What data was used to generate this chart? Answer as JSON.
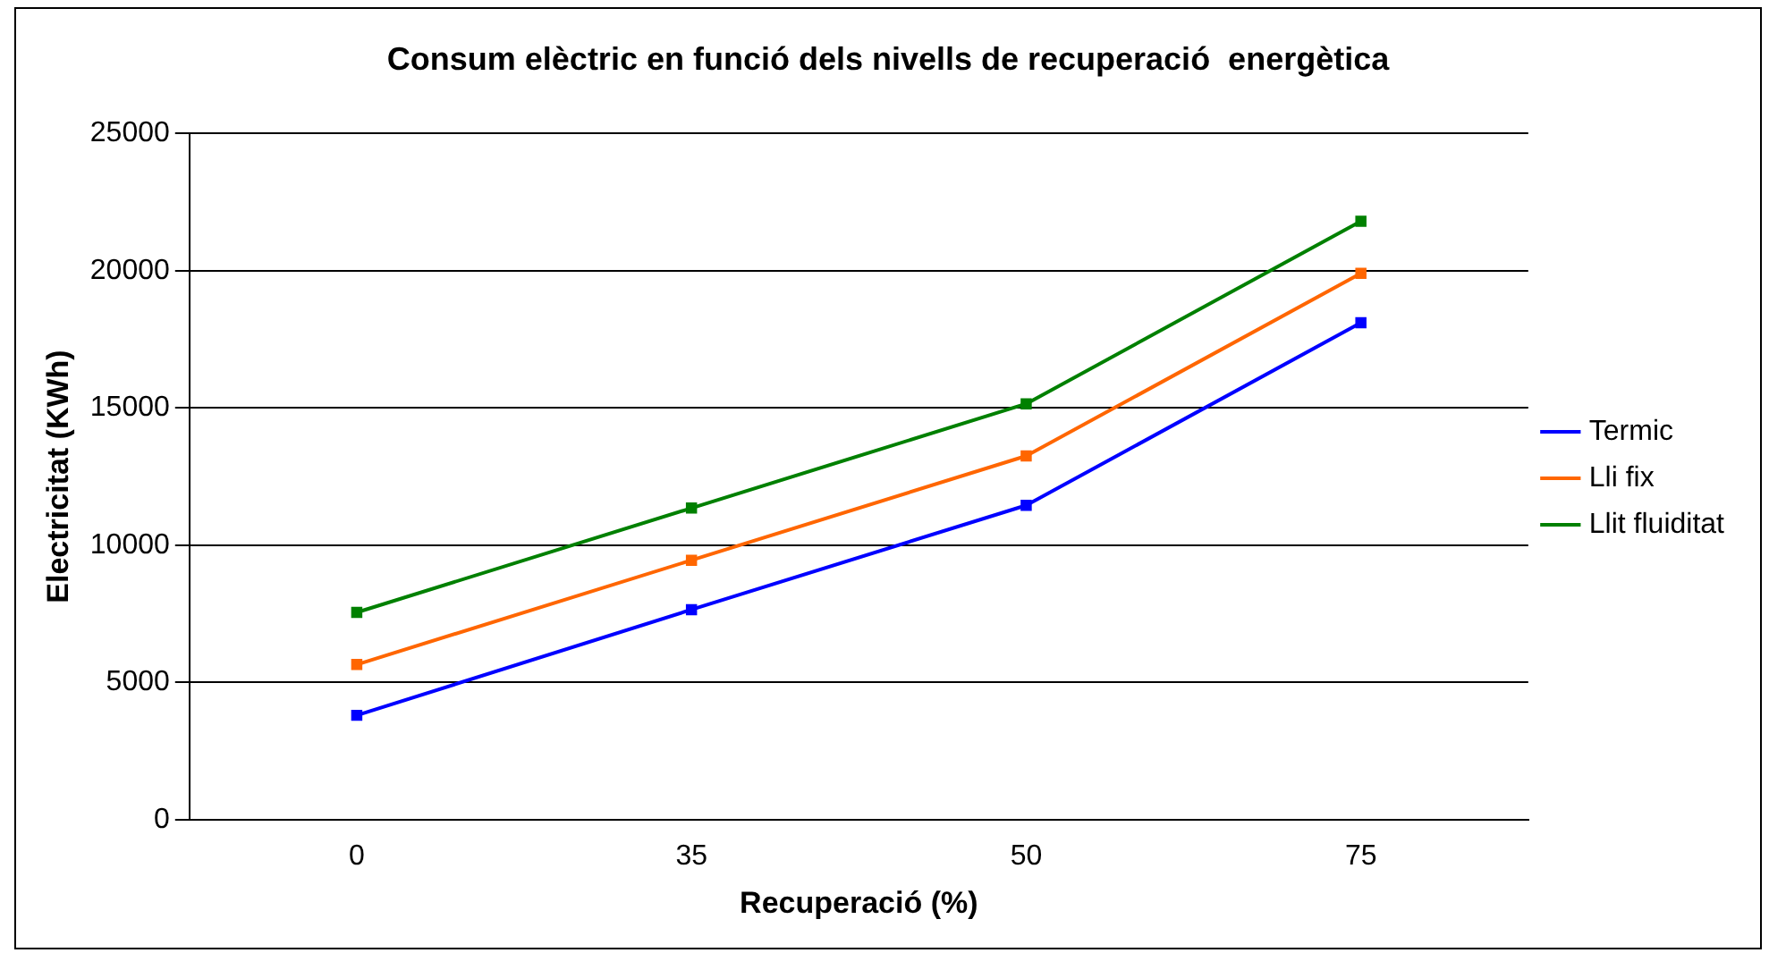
{
  "chart_data": {
    "type": "line",
    "title": "Consum elèctric en funció dels nivells de recuperació  energètica",
    "xlabel": "Recuperació (%)",
    "ylabel": "Electricitat (KWh)",
    "categories": [
      "0",
      "35",
      "50",
      "75"
    ],
    "series": [
      {
        "name": "Termic",
        "color": "#0000ff",
        "values": [
          3800,
          7650,
          11450,
          18100
        ]
      },
      {
        "name": "Lli fix",
        "color": "#ff6600",
        "values": [
          5650,
          9450,
          13250,
          19900
        ]
      },
      {
        "name": "Llit fluiditat",
        "color": "#008000",
        "values": [
          7550,
          11350,
          15150,
          21800
        ]
      }
    ],
    "ylim": [
      0,
      25000
    ],
    "yticks": [
      0,
      5000,
      10000,
      15000,
      20000,
      25000
    ],
    "grid": "y",
    "legend": "right",
    "marker": "square",
    "line_style": "solid"
  }
}
